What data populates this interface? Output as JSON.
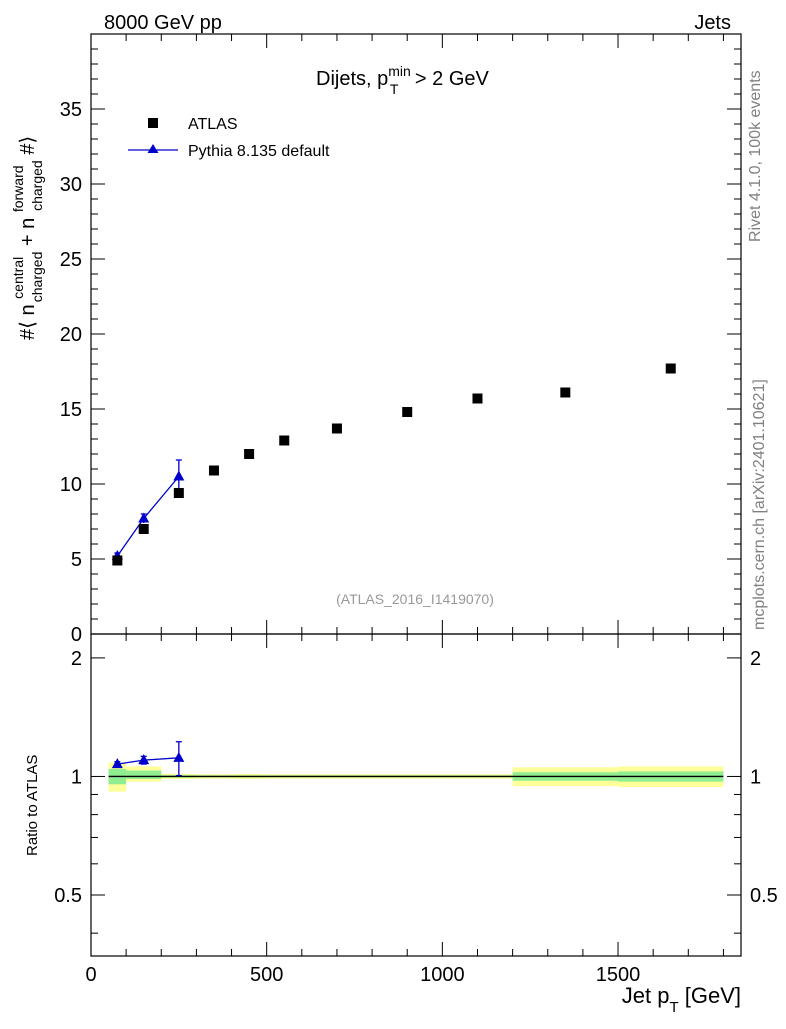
{
  "header": {
    "left": "8000 GeV pp",
    "right": "Jets"
  },
  "side_text": {
    "rivet": "Rivet 4.1.0,  100k events",
    "mcplots": "mcplots.cern.ch [arXiv:2401.10621]"
  },
  "watermark": "(ATLAS_2016_I1419070)",
  "colors": {
    "data": "#000000",
    "mc": "#0000cc",
    "band_inner": "#90ee90",
    "band_outer": "#ffff99",
    "watermark": "#999999",
    "side_text": "#808080"
  },
  "chart_data": [
    {
      "type": "scatter",
      "panel": "main",
      "title": "Dijets, pTmin > 2 GeV",
      "title_parts": {
        "prefix": "Dijets, p",
        "sub": "T",
        "sup": "min",
        "suffix": " > 2 GeV"
      },
      "ylabel": "#⟨ n central charged + n forward charged #⟩",
      "ylabel_parts": {
        "prefix": "#⟨ n",
        "sup1": "central",
        "sub1": "charged",
        "mid": " + n",
        "sup2": "forward",
        "sub2": "charged",
        "suffix": "#⟩"
      },
      "xlim": [
        0,
        1850
      ],
      "ylim": [
        0,
        40
      ],
      "y_ticks": [
        0,
        5,
        10,
        15,
        20,
        25,
        30,
        35
      ],
      "legend": {
        "position": "top-left",
        "entries": [
          "ATLAS",
          "Pythia 8.135 default"
        ]
      },
      "series": [
        {
          "name": "ATLAS",
          "marker": "square",
          "x": [
            75,
            150,
            250,
            350,
            450,
            550,
            700,
            900,
            1100,
            1350,
            1650
          ],
          "values": [
            4.9,
            7.0,
            9.4,
            10.9,
            12.0,
            12.9,
            13.7,
            14.8,
            15.7,
            16.1,
            17.7
          ]
        },
        {
          "name": "Pythia 8.135 default",
          "marker": "triangle",
          "x": [
            75,
            150,
            250
          ],
          "values": [
            5.2,
            7.7,
            10.5
          ],
          "err": [
            0.2,
            0.3,
            1.1
          ]
        }
      ]
    },
    {
      "type": "line",
      "panel": "ratio",
      "ylabel": "Ratio to ATLAS",
      "xlabel": "Jet pT [GeV]",
      "xlabel_parts": {
        "prefix": "Jet p",
        "sub": "T",
        "suffix": " [GeV]"
      },
      "xlim": [
        0,
        1850
      ],
      "ylim": [
        0.35,
        2.3
      ],
      "x_ticks": [
        0,
        500,
        1000,
        1500
      ],
      "y_ticks": [
        0.5,
        1,
        2
      ],
      "bands": [
        {
          "x0": 50,
          "x1": 100,
          "inner": [
            0.955,
            1.045
          ],
          "outer": [
            0.915,
            1.085
          ]
        },
        {
          "x0": 100,
          "x1": 200,
          "inner": [
            0.985,
            1.035
          ],
          "outer": [
            0.97,
            1.06
          ]
        },
        {
          "x0": 200,
          "x1": 300,
          "inner": [
            0.993,
            1.007
          ],
          "outer": [
            0.985,
            1.015
          ]
        },
        {
          "x0": 300,
          "x1": 400,
          "inner": [
            0.994,
            1.006
          ],
          "outer": [
            0.987,
            1.013
          ]
        },
        {
          "x0": 400,
          "x1": 500,
          "inner": [
            0.994,
            1.006
          ],
          "outer": [
            0.985,
            1.015
          ]
        },
        {
          "x0": 500,
          "x1": 600,
          "inner": [
            0.994,
            1.006
          ],
          "outer": [
            0.987,
            1.013
          ]
        },
        {
          "x0": 600,
          "x1": 800,
          "inner": [
            0.994,
            1.006
          ],
          "outer": [
            0.987,
            1.013
          ]
        },
        {
          "x0": 800,
          "x1": 1000,
          "inner": [
            0.994,
            1.006
          ],
          "outer": [
            0.987,
            1.013
          ]
        },
        {
          "x0": 1000,
          "x1": 1200,
          "inner": [
            0.994,
            1.006
          ],
          "outer": [
            0.987,
            1.013
          ]
        },
        {
          "x0": 1200,
          "x1": 1500,
          "inner": [
            0.975,
            1.025
          ],
          "outer": [
            0.945,
            1.055
          ]
        },
        {
          "x0": 1500,
          "x1": 1800,
          "inner": [
            0.97,
            1.03
          ],
          "outer": [
            0.94,
            1.06
          ]
        }
      ],
      "series": [
        {
          "name": "Pythia 8.135 default",
          "x": [
            75,
            150,
            250
          ],
          "values": [
            1.075,
            1.1,
            1.115
          ],
          "err": [
            0.015,
            0.025,
            0.11
          ]
        }
      ]
    }
  ]
}
